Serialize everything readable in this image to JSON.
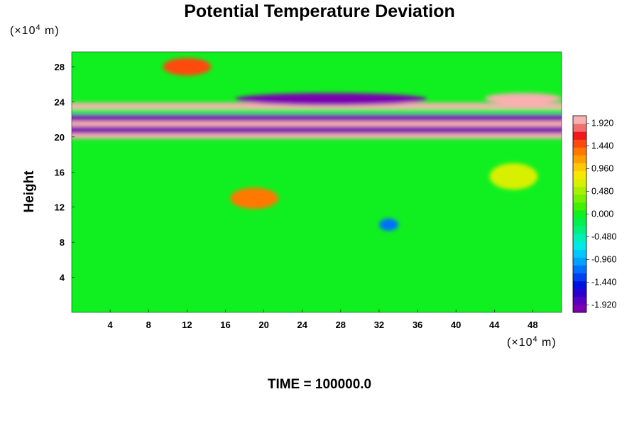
{
  "chart_data": {
    "type": "heatmap",
    "title": "Potential Temperature Deviation",
    "ylabel": "Height",
    "xlabel": "",
    "x_unit": {
      "prefix": "(×10",
      "exponent": "4",
      "suffix": " m)"
    },
    "y_unit": {
      "prefix": "(×10",
      "exponent": "4",
      "suffix": " m)"
    },
    "xlim": [
      0,
      51
    ],
    "ylim": [
      0,
      29.7
    ],
    "x_ticks": [
      4,
      8,
      12,
      16,
      20,
      24,
      28,
      32,
      36,
      40,
      44,
      48
    ],
    "y_ticks": [
      4,
      8,
      12,
      16,
      20,
      24,
      28
    ],
    "colorbar": {
      "range": [
        -2.08,
        2.08
      ],
      "labels": [
        "1.920",
        "1.440",
        "0.960",
        "0.480",
        "0.000",
        "-0.480",
        "-0.960",
        "-1.440",
        "-1.920"
      ],
      "colors": [
        "#7a00b0",
        "#5a00c0",
        "#2a00d0",
        "#0010e0",
        "#0040f0",
        "#0070ff",
        "#00a0ff",
        "#00c8ff",
        "#00e8e8",
        "#00f0b8",
        "#00f080",
        "#00f050",
        "#10f020",
        "#40f000",
        "#78f000",
        "#a8f000",
        "#d8f000",
        "#f8e800",
        "#ffc800",
        "#ffa000",
        "#ff7800",
        "#ff4810",
        "#f01818",
        "#f07070",
        "#f8b0b0"
      ]
    },
    "features": [
      {
        "kind": "band",
        "x": [
          0,
          51
        ],
        "y": [
          23.2,
          23.9
        ],
        "value": 1.95
      },
      {
        "kind": "band",
        "x": [
          0,
          51
        ],
        "y": [
          22.6,
          23.2
        ],
        "value": -0.1
      },
      {
        "kind": "band",
        "x": [
          0,
          51
        ],
        "y": [
          21.8,
          22.6
        ],
        "value": -1.95
      },
      {
        "kind": "band",
        "x": [
          0,
          51
        ],
        "y": [
          21.2,
          21.8
        ],
        "value": 1.95
      },
      {
        "kind": "band",
        "x": [
          0,
          51
        ],
        "y": [
          20.4,
          21.2
        ],
        "value": -1.95
      },
      {
        "kind": "band",
        "x": [
          0,
          51
        ],
        "y": [
          19.8,
          20.4
        ],
        "value": 1.95
      },
      {
        "kind": "blob",
        "x": 27,
        "y": 24.3,
        "rx": 10,
        "ry": 0.7,
        "value": -1.95
      },
      {
        "kind": "blob",
        "x": 47,
        "y": 24.4,
        "rx": 4,
        "ry": 0.6,
        "value": 1.95
      },
      {
        "kind": "blob",
        "x": 12,
        "y": 28,
        "rx": 2.5,
        "ry": 1,
        "value": 1.5
      },
      {
        "kind": "blob",
        "x": 19,
        "y": 13,
        "rx": 2.5,
        "ry": 1.2,
        "value": 1.4
      },
      {
        "kind": "blob",
        "x": 46,
        "y": 15.5,
        "rx": 2.5,
        "ry": 1.5,
        "value": 0.7
      },
      {
        "kind": "blob",
        "x": 33,
        "y": 10,
        "rx": 1,
        "ry": 0.7,
        "value": -1.2
      }
    ],
    "annotation": "TIME = 100000.0"
  }
}
